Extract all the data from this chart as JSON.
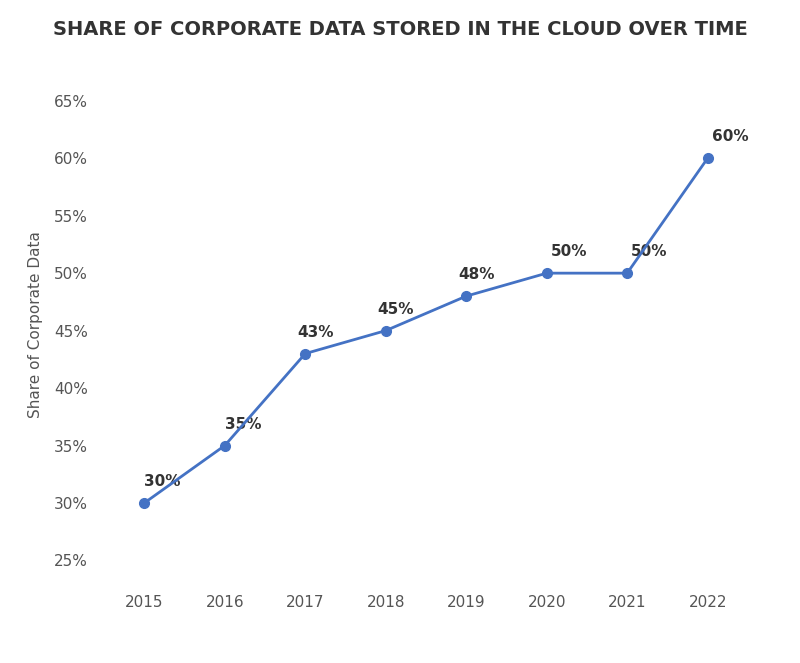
{
  "years": [
    2015,
    2016,
    2017,
    2018,
    2019,
    2020,
    2021,
    2022
  ],
  "values": [
    30,
    35,
    43,
    45,
    48,
    50,
    50,
    60
  ],
  "labels": [
    "30%",
    "35%",
    "43%",
    "45%",
    "48%",
    "50%",
    "50%",
    "60%"
  ],
  "title": "SHARE OF CORPORATE DATA STORED IN THE CLOUD OVER TIME",
  "ylabel": "Share of Corporate Data",
  "line_color": "#4472C4",
  "marker_color": "#4472C4",
  "background_color": "#ffffff",
  "title_fontsize": 14,
  "label_fontsize": 11,
  "tick_fontsize": 11,
  "ylabel_fontsize": 11,
  "ylim": [
    23,
    68
  ],
  "yticks": [
    25,
    30,
    35,
    40,
    45,
    50,
    55,
    60,
    65
  ],
  "ytick_labels": [
    "25%",
    "30%",
    "35%",
    "40%",
    "45%",
    "50%",
    "55%",
    "60%",
    "65%"
  ],
  "title_color": "#333333",
  "text_color": "#555555"
}
